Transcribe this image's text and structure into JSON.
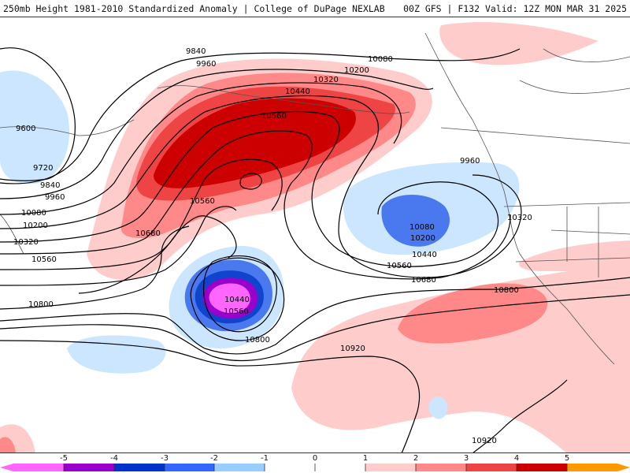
{
  "header": {
    "title": "250mb Height 1981-2010 Standardized Anomaly | College of DuPage NEXLAB",
    "run_info": "00Z GFS | F132 Valid: 12Z MON MAR 31 2025"
  },
  "contour_labels": [
    "9840",
    "9960",
    "10080",
    "10200",
    "10320",
    "10440",
    "10560",
    "9600",
    "9720",
    "9840",
    "9960",
    "10080",
    "10200",
    "10320",
    "10560",
    "10680",
    "10560",
    "10440",
    "10560",
    "10800",
    "10800",
    "9960",
    "10080",
    "10200",
    "10440",
    "10560",
    "10680",
    "10320",
    "10800",
    "10920",
    "10920"
  ],
  "colorbar": {
    "ticks": [
      "-5",
      "-4",
      "-3",
      "-2",
      "-1",
      "0",
      "1",
      "2",
      "3",
      "4",
      "5"
    ],
    "colors": [
      "#ff66ff",
      "#9900cc",
      "#0033cc",
      "#3366ff",
      "#99ccff",
      "#ffffff",
      "#ffcccc",
      "#ff8888",
      "#ee4444",
      "#cc0000",
      "#ff9900"
    ]
  }
}
